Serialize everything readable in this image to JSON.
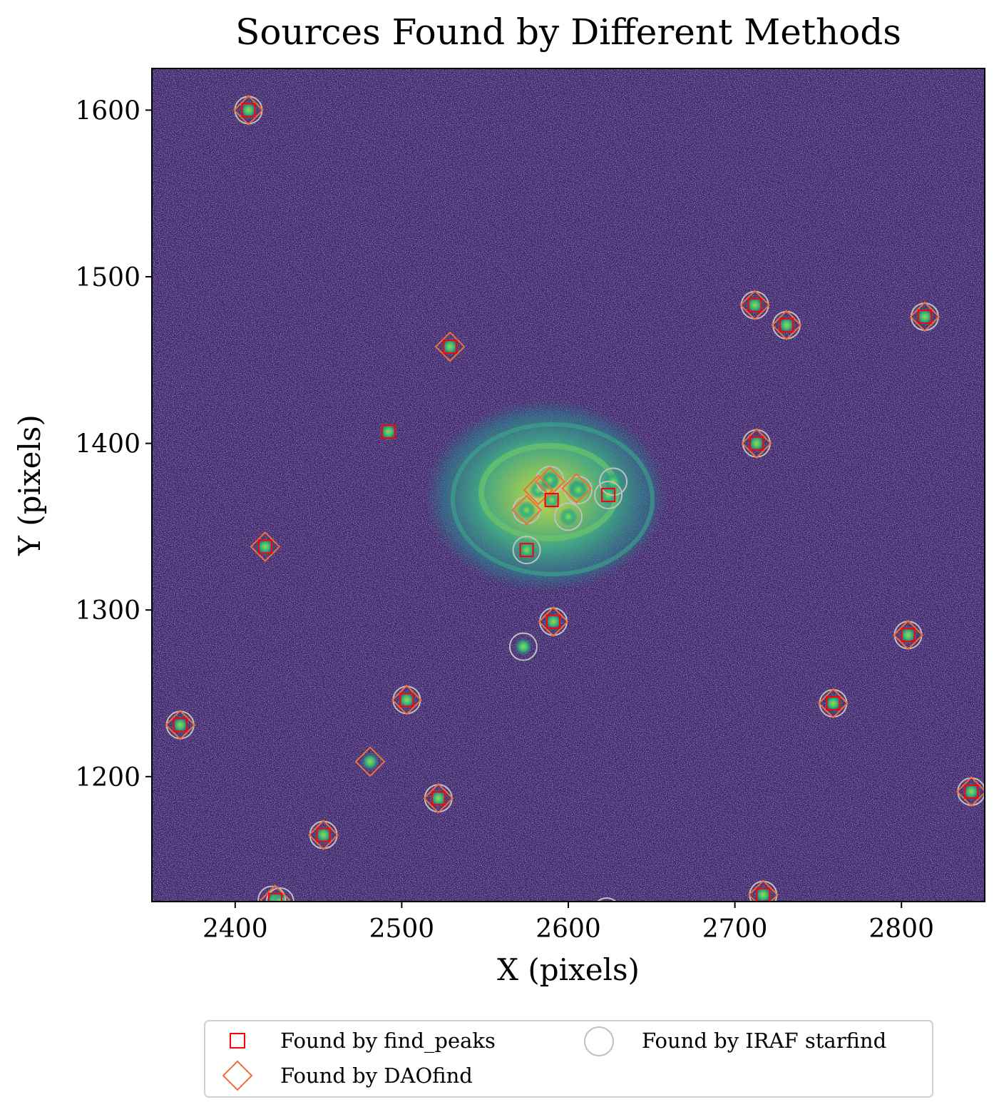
{
  "chart_data": {
    "type": "scatter",
    "title": "Sources Found by Different Methods",
    "xlabel": "X (pixels)",
    "ylabel": "Y (pixels)",
    "xlim": [
      2350,
      2850
    ],
    "ylim": [
      1125,
      1625
    ],
    "xticks": [
      2400,
      2500,
      2600,
      2700,
      2800
    ],
    "yticks": [
      1200,
      1300,
      1400,
      1500,
      1600
    ],
    "background": "astronomical image (viridis colormap) of a spiral galaxy with field sources",
    "legend_placement": "below",
    "legend_columns": 2,
    "colors": {
      "image_background": "#471f6b",
      "image_noise": "#3b6e8c",
      "galaxy_core": "#b6dd3d",
      "find_peaks": "#ff0000",
      "daofind": "#ef6f37",
      "starfind": "#c0c0c0"
    },
    "series": [
      {
        "name": "Found by find_peaks",
        "marker": "square",
        "x": [
          2408,
          2529,
          2492,
          2418,
          2712,
          2731,
          2814,
          2713,
          2590,
          2624,
          2575,
          2591,
          2503,
          2367,
          2522,
          2453,
          2424,
          2717,
          2804,
          2759,
          2842
        ],
        "y": [
          1600,
          1458,
          1407,
          1338,
          1483,
          1471,
          1476,
          1400,
          1366,
          1369,
          1336,
          1293,
          1246,
          1231,
          1187,
          1165,
          1126,
          1129,
          1285,
          1244,
          1191
        ]
      },
      {
        "name": "Found by DAOfind",
        "marker": "diamond",
        "x": [
          2408,
          2529,
          2418,
          2712,
          2731,
          2814,
          2713,
          2589,
          2605,
          2575,
          2582,
          2591,
          2503,
          2367,
          2481,
          2522,
          2453,
          2424,
          2717,
          2804,
          2759,
          2842
        ],
        "y": [
          1600,
          1458,
          1338,
          1483,
          1471,
          1476,
          1400,
          1377,
          1373,
          1360,
          1372,
          1293,
          1246,
          1231,
          1209,
          1187,
          1165,
          1126,
          1129,
          1285,
          1244,
          1191
        ]
      },
      {
        "name": "Found by IRAF starfind",
        "marker": "circle",
        "x": [
          2408,
          2712,
          2731,
          2814,
          2713,
          2589,
          2606,
          2627,
          2624,
          2600,
          2575,
          2575,
          2591,
          2573,
          2503,
          2367,
          2522,
          2453,
          2422,
          2427,
          2717,
          2623,
          2804,
          2759,
          2842
        ],
        "y": [
          1600,
          1483,
          1471,
          1476,
          1400,
          1378,
          1372,
          1377,
          1369,
          1356,
          1336,
          1360,
          1293,
          1278,
          1246,
          1231,
          1187,
          1165,
          1126,
          1125,
          1129,
          1119,
          1285,
          1244,
          1191
        ]
      }
    ]
  }
}
